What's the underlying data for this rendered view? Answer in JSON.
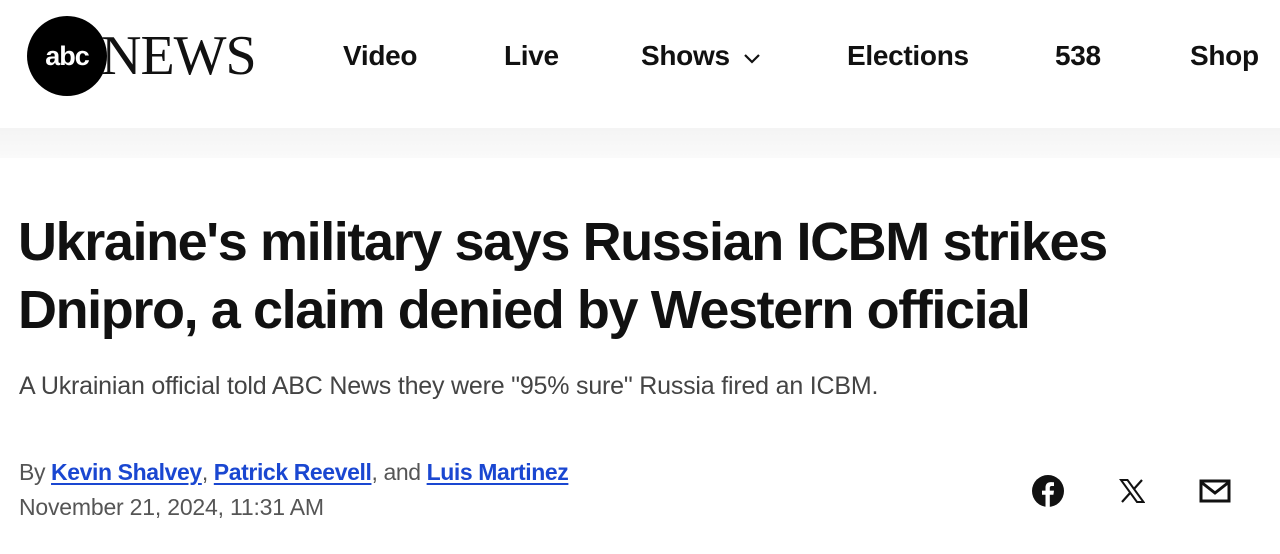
{
  "header": {
    "logo": {
      "circle_text": "abc",
      "wordmark": "NEWS"
    },
    "nav": [
      {
        "label": "Video"
      },
      {
        "label": "Live"
      },
      {
        "label": "Shows",
        "has_dropdown": true
      },
      {
        "label": "Elections"
      },
      {
        "label": "538"
      },
      {
        "label": "Shop"
      }
    ]
  },
  "article": {
    "headline_line1": "Ukraine's military says Russian ICBM strikes",
    "headline_line2": "Dnipro, a claim denied by Western official",
    "subheadline": "A Ukrainian official told ABC News they were \"95% sure\" Russia fired an ICBM.",
    "byline": {
      "prefix": "By ",
      "authors": [
        "Kevin Shalvey",
        "Patrick Reevell",
        "Luis Martinez"
      ],
      "sep1": ", ",
      "sep2": ", and "
    },
    "date": "November 21, 2024, 11:31 AM"
  },
  "share": [
    "facebook-icon",
    "x-icon",
    "email-icon"
  ],
  "colors": {
    "link": "#1a47d1",
    "text": "#111111",
    "muted": "#555555"
  }
}
